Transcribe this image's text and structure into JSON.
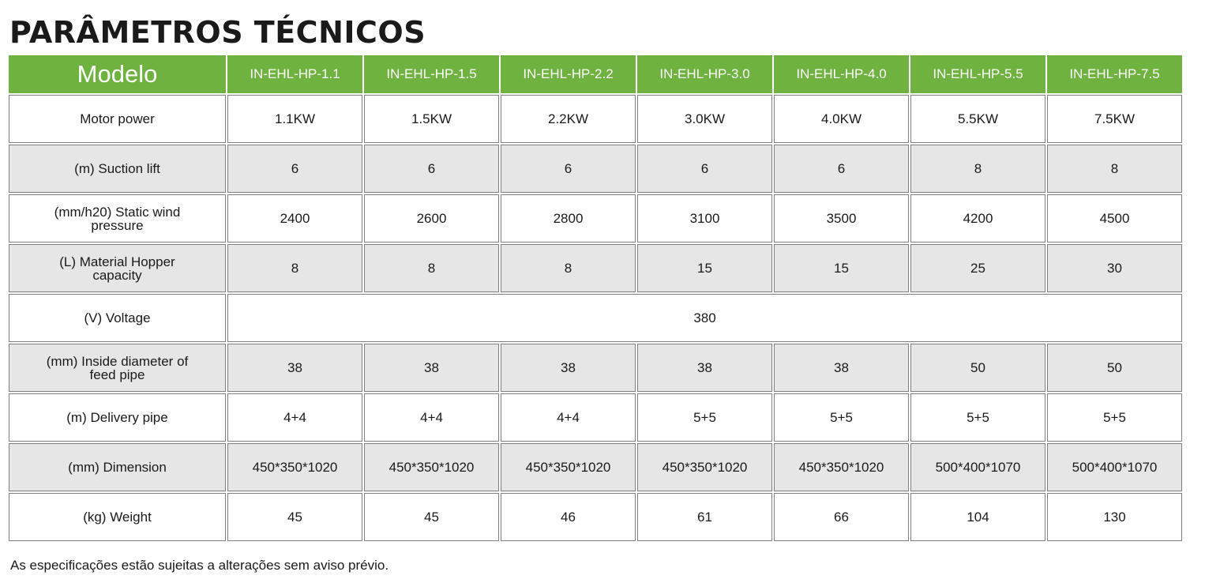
{
  "title": "PARÂMETROS TÉCNICOS",
  "colors": {
    "header_green": "#6fb23f",
    "row_shaded": "#e6e6e6",
    "row_plain": "#ffffff"
  },
  "table": {
    "header_label": "Modelo",
    "models": [
      "IN-EHL-HP-1.1",
      "IN-EHL-HP-1.5",
      "IN-EHL-HP-2.2",
      "IN-EHL-HP-3.0",
      "IN-EHL-HP-4.0",
      "IN-EHL-HP-5.5",
      "IN-EHL-HP-7.5"
    ],
    "rows": [
      {
        "label": "Motor power",
        "values": [
          "1.1KW",
          "1.5KW",
          "2.2KW",
          "3.0KW",
          "4.0KW",
          "5.5KW",
          "7.5KW"
        ]
      },
      {
        "label": "(m) Suction lift",
        "values": [
          "6",
          "6",
          "6",
          "6",
          "6",
          "8",
          "8"
        ]
      },
      {
        "label": "(mm/h20) Static wind pressure",
        "values": [
          "2400",
          "2600",
          "2800",
          "3100",
          "3500",
          "4200",
          "4500"
        ]
      },
      {
        "label": "(L) Material Hopper capacity",
        "values": [
          "8",
          "8",
          "8",
          "15",
          "15",
          "25",
          "30"
        ]
      },
      {
        "label": "(V) Voltage",
        "values": [
          "380"
        ]
      },
      {
        "label": "(mm) Inside diameter of feed pipe",
        "values": [
          "38",
          "38",
          "38",
          "38",
          "38",
          "50",
          "50"
        ]
      },
      {
        "label": "(m) Delivery pipe",
        "values": [
          "4+4",
          "4+4",
          "4+4",
          "5+5",
          "5+5",
          "5+5",
          "5+5"
        ]
      },
      {
        "label": "(mm) Dimension",
        "values": [
          "450*350*1020",
          "450*350*1020",
          "450*350*1020",
          "450*350*1020",
          "450*350*1020",
          "500*400*1070",
          "500*400*1070"
        ]
      },
      {
        "label": "(kg) Weight",
        "values": [
          "45",
          "45",
          "46",
          "61",
          "66",
          "104",
          "130"
        ]
      }
    ]
  },
  "note": "As especificações estão sujeitas a alterações sem aviso prévio."
}
